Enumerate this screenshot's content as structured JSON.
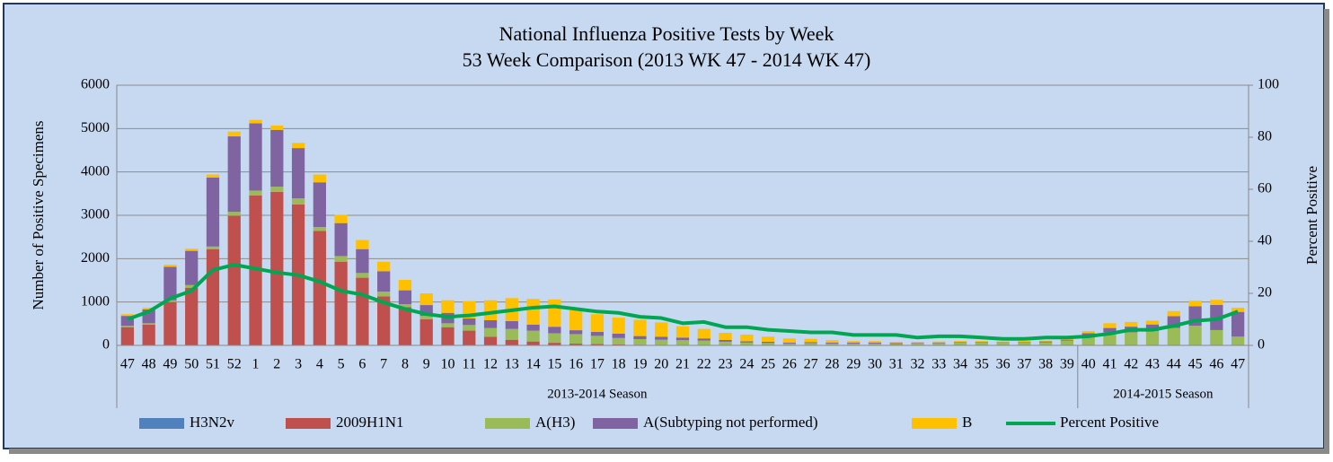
{
  "chart_data": {
    "type": "bar",
    "stacked": true,
    "title": "National Influenza Positive Tests by Week",
    "subtitle": "53 Week Comparison (2013 WK 47 - 2014 WK 47)",
    "y_label": "Number of Positive Specimens",
    "y2_label": "Percent Positive",
    "categories": [
      "47",
      "48",
      "49",
      "50",
      "51",
      "52",
      "1",
      "2",
      "3",
      "4",
      "5",
      "6",
      "7",
      "8",
      "9",
      "10",
      "11",
      "12",
      "13",
      "14",
      "15",
      "16",
      "17",
      "18",
      "19",
      "20",
      "21",
      "22",
      "23",
      "24",
      "25",
      "26",
      "27",
      "28",
      "29",
      "30",
      "31",
      "32",
      "33",
      "34",
      "35",
      "36",
      "37",
      "38",
      "39",
      "40",
      "41",
      "42",
      "43",
      "44",
      "45",
      "46",
      "47"
    ],
    "groups": [
      {
        "label": "2013-2014 Season",
        "span": 45
      },
      {
        "label": "2014-2015 Season",
        "span": 8
      }
    ],
    "series": [
      {
        "name": "H3N2v",
        "type": "bar",
        "color": "#4f81bd",
        "values": [
          0,
          0,
          0,
          0,
          0,
          0,
          0,
          0,
          0,
          0,
          0,
          0,
          0,
          0,
          0,
          0,
          0,
          0,
          0,
          0,
          0,
          0,
          0,
          0,
          0,
          0,
          0,
          0,
          0,
          0,
          0,
          0,
          0,
          0,
          0,
          0,
          0,
          0,
          0,
          0,
          0,
          0,
          0,
          0,
          0,
          0,
          0,
          0,
          0,
          0,
          0,
          0,
          0
        ]
      },
      {
        "name": "2009H1N1",
        "type": "bar",
        "color": "#c0504d",
        "values": [
          420,
          480,
          1000,
          1330,
          2220,
          2990,
          3460,
          3540,
          3250,
          2640,
          1930,
          1560,
          1130,
          880,
          600,
          420,
          340,
          200,
          130,
          90,
          60,
          40,
          30,
          20,
          15,
          10,
          10,
          10,
          5,
          5,
          5,
          3,
          3,
          2,
          2,
          2,
          2,
          1,
          1,
          1,
          1,
          1,
          1,
          1,
          1,
          1,
          1,
          2,
          2,
          2,
          3,
          3,
          2
        ]
      },
      {
        "name": "A(H3)",
        "type": "bar",
        "color": "#9bbb59",
        "values": [
          30,
          30,
          40,
          60,
          60,
          90,
          110,
          120,
          140,
          90,
          130,
          110,
          110,
          70,
          80,
          90,
          130,
          200,
          250,
          250,
          220,
          220,
          190,
          150,
          130,
          120,
          110,
          100,
          80,
          60,
          50,
          40,
          50,
          40,
          40,
          40,
          30,
          40,
          50,
          60,
          60,
          60,
          70,
          70,
          110,
          200,
          300,
          300,
          330,
          400,
          450,
          350,
          200
        ]
      },
      {
        "name": "A(Subtyping not performed)",
        "type": "bar",
        "color": "#8064a2",
        "values": [
          230,
          320,
          770,
          790,
          1590,
          1740,
          1550,
          1310,
          1160,
          1030,
          760,
          550,
          470,
          320,
          250,
          240,
          150,
          180,
          180,
          140,
          150,
          90,
          90,
          100,
          70,
          70,
          60,
          50,
          40,
          30,
          30,
          20,
          20,
          20,
          20,
          20,
          20,
          15,
          15,
          15,
          15,
          10,
          10,
          20,
          20,
          80,
          100,
          130,
          150,
          270,
          450,
          580,
          570
        ]
      },
      {
        "name": "B",
        "type": "bar",
        "color": "#ffc000",
        "values": [
          40,
          40,
          50,
          50,
          70,
          110,
          80,
          100,
          120,
          180,
          190,
          210,
          220,
          240,
          270,
          290,
          400,
          460,
          530,
          590,
          630,
          460,
          410,
          370,
          375,
          330,
          260,
          220,
          165,
          155,
          115,
          97,
          77,
          58,
          38,
          38,
          28,
          24,
          24,
          24,
          24,
          19,
          19,
          19,
          19,
          49,
          109,
          108,
          88,
          118,
          127,
          117,
          98
        ]
      },
      {
        "name": "Percent Positive",
        "type": "line",
        "axis": "y2",
        "color": "#00a651",
        "values": [
          10,
          13,
          18,
          21,
          29,
          31,
          29.5,
          28,
          27,
          24.5,
          21,
          19.5,
          16.5,
          14,
          12,
          11,
          11.5,
          12.5,
          13.5,
          14.5,
          15,
          14,
          13,
          12.5,
          11,
          10.5,
          8.5,
          9,
          7,
          7,
          6,
          5.5,
          5,
          5,
          4,
          4,
          4,
          3,
          3.5,
          3.5,
          3,
          2.5,
          2.5,
          3,
          3,
          3.5,
          4.5,
          6,
          6,
          7.5,
          9.5,
          10,
          13
        ]
      }
    ],
    "ylim": [
      0,
      6000
    ],
    "yticks": [
      0,
      1000,
      2000,
      3000,
      4000,
      5000,
      6000
    ],
    "y2lim": [
      0,
      100
    ],
    "y2ticks": [
      0,
      20,
      40,
      60,
      80,
      100
    ],
    "grid": true
  }
}
